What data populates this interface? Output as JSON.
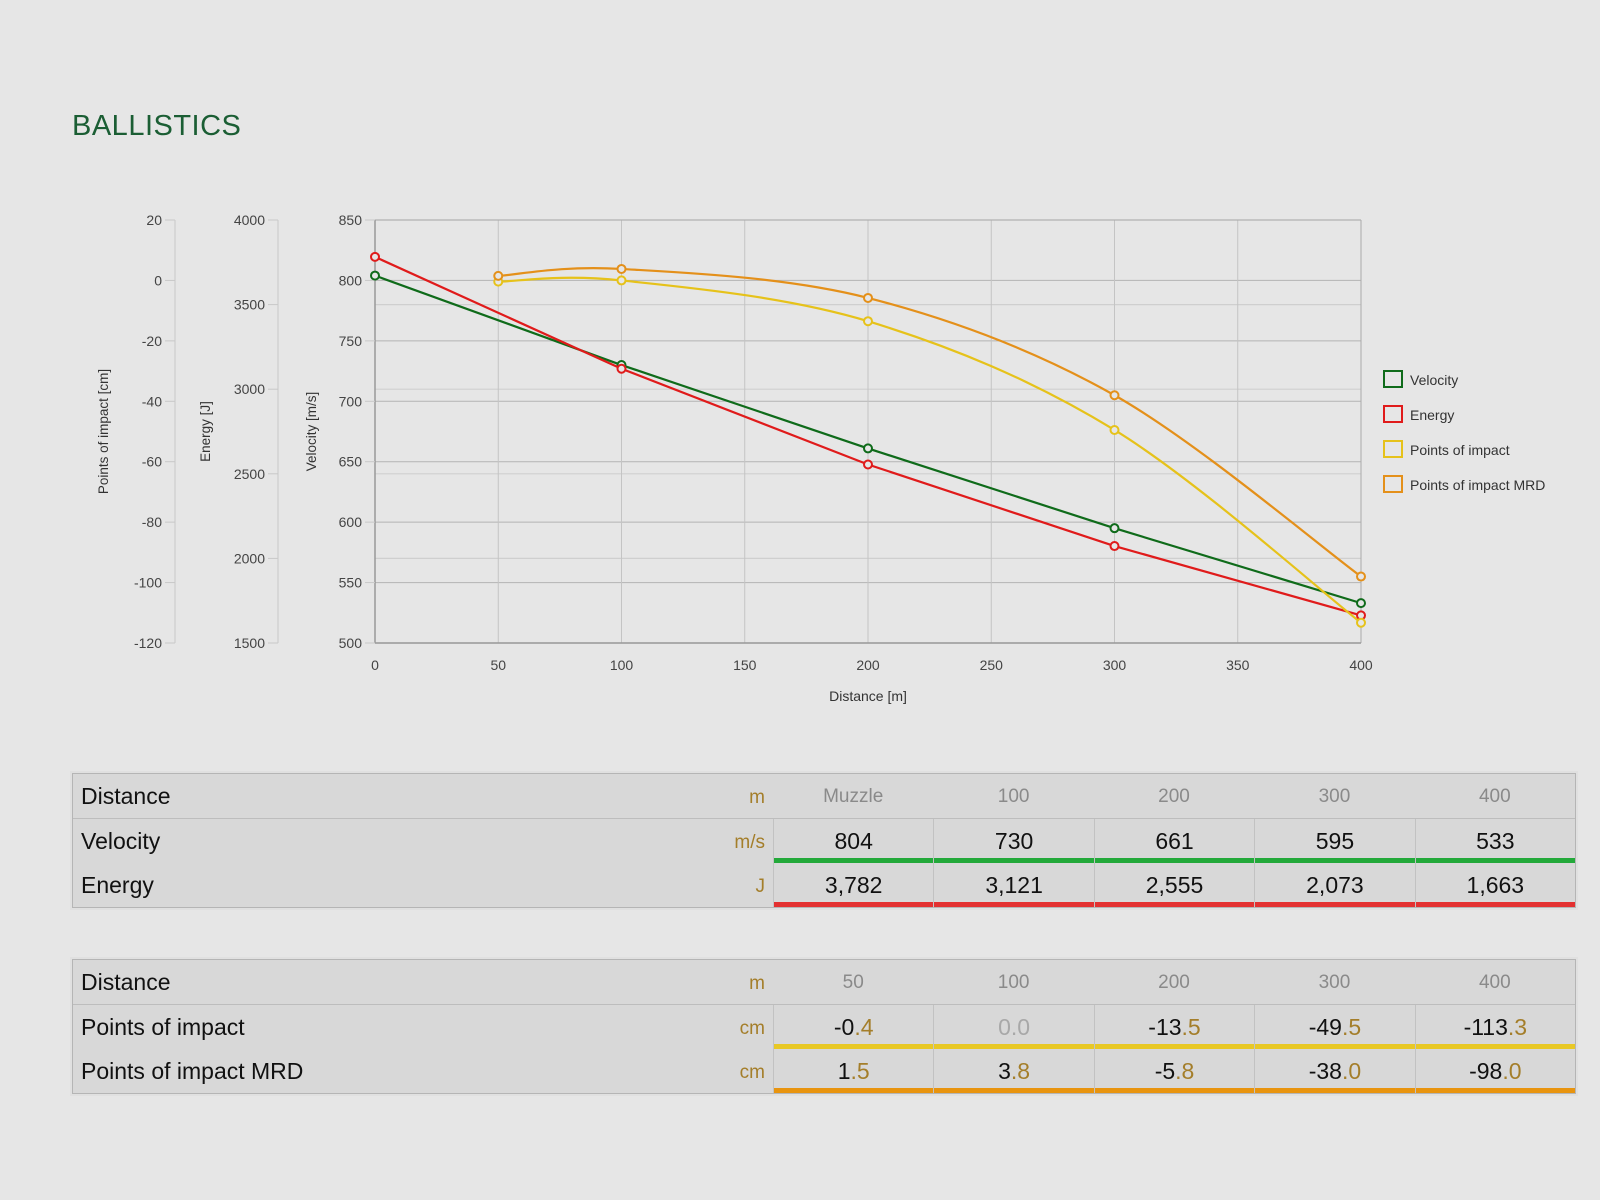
{
  "page": {
    "title": "BALLISTICS"
  },
  "colors": {
    "velocity": "#0f6b1a",
    "energy": "#e01b1b",
    "poi": "#e6c21a",
    "mrd": "#e4901a",
    "velocity_bar": "#23a93a",
    "energy_bar": "#e33030",
    "poi_bar": "#e8c825",
    "mrd_bar": "#e8940f"
  },
  "chart_data": {
    "type": "line",
    "xlabel": "Distance [m]",
    "x_ticks": [
      0,
      50,
      100,
      150,
      200,
      250,
      300,
      350,
      400
    ],
    "xlim": [
      0,
      400
    ],
    "axes": [
      {
        "id": "poi",
        "label": "Points of impact [cm]",
        "ylim": [
          -120,
          20
        ],
        "ticks": [
          20,
          0,
          -20,
          -40,
          -60,
          -80,
          -100,
          -120
        ]
      },
      {
        "id": "energy",
        "label": "Energy [J]",
        "ylim": [
          1500,
          4000
        ],
        "ticks": [
          4000,
          3500,
          3000,
          2500,
          2000,
          1500
        ]
      },
      {
        "id": "velocity",
        "label": "Velocity [m/s]",
        "ylim": [
          500,
          850
        ],
        "ticks": [
          850,
          800,
          750,
          700,
          650,
          600,
          550,
          500
        ]
      }
    ],
    "series": [
      {
        "name": "Velocity",
        "axis": "velocity",
        "color": "#0f6b1a",
        "smooth": false,
        "x": [
          0,
          100,
          200,
          300,
          400
        ],
        "y": [
          804,
          730,
          661,
          595,
          533
        ]
      },
      {
        "name": "Energy",
        "axis": "energy",
        "color": "#e01b1b",
        "smooth": false,
        "x": [
          0,
          100,
          200,
          300,
          400
        ],
        "y": [
          3782,
          3121,
          2555,
          2073,
          1663
        ]
      },
      {
        "name": "Points of impact",
        "axis": "poi",
        "color": "#e6c21a",
        "smooth": true,
        "x": [
          50,
          100,
          200,
          300,
          400
        ],
        "y": [
          -0.4,
          0.0,
          -13.5,
          -49.5,
          -113.3
        ]
      },
      {
        "name": "Points of impact MRD",
        "axis": "poi",
        "color": "#e4901a",
        "smooth": true,
        "x": [
          50,
          100,
          200,
          300,
          400
        ],
        "y": [
          1.5,
          3.8,
          -5.8,
          -38.0,
          -98.0
        ]
      }
    ],
    "legend": "right"
  },
  "table1": {
    "header": {
      "label": "Distance",
      "unit": "m",
      "cols": [
        "Muzzle",
        "100",
        "200",
        "300",
        "400"
      ]
    },
    "rows": [
      {
        "label": "Velocity",
        "unit": "m/s",
        "bar": "#23a93a",
        "values": [
          {
            "int": "804",
            "dec": ""
          },
          {
            "int": "730",
            "dec": ""
          },
          {
            "int": "661",
            "dec": ""
          },
          {
            "int": "595",
            "dec": ""
          },
          {
            "int": "533",
            "dec": ""
          }
        ]
      },
      {
        "label": "Energy",
        "unit": "J",
        "bar": "#e33030",
        "values": [
          {
            "int": "3,782",
            "dec": ""
          },
          {
            "int": "3,121",
            "dec": ""
          },
          {
            "int": "2,555",
            "dec": ""
          },
          {
            "int": "2,073",
            "dec": ""
          },
          {
            "int": "1,663",
            "dec": ""
          }
        ]
      }
    ]
  },
  "table2": {
    "header": {
      "label": "Distance",
      "unit": "m",
      "cols": [
        "50",
        "100",
        "200",
        "300",
        "400"
      ]
    },
    "rows": [
      {
        "label": "Points of impact",
        "unit": "cm",
        "bar": "#e8c825",
        "values": [
          {
            "int": "-0",
            "dec": ".4"
          },
          {
            "int": "0",
            "dec": ".0",
            "muted": true
          },
          {
            "int": "-13",
            "dec": ".5"
          },
          {
            "int": "-49",
            "dec": ".5"
          },
          {
            "int": "-113",
            "dec": ".3"
          }
        ]
      },
      {
        "label": "Points of impact MRD",
        "unit": "cm",
        "bar": "#e8940f",
        "values": [
          {
            "int": "1",
            "dec": ".5"
          },
          {
            "int": "3",
            "dec": ".8"
          },
          {
            "int": "-5",
            "dec": ".8"
          },
          {
            "int": "-38",
            "dec": ".0"
          },
          {
            "int": "-98",
            "dec": ".0"
          }
        ]
      }
    ]
  }
}
